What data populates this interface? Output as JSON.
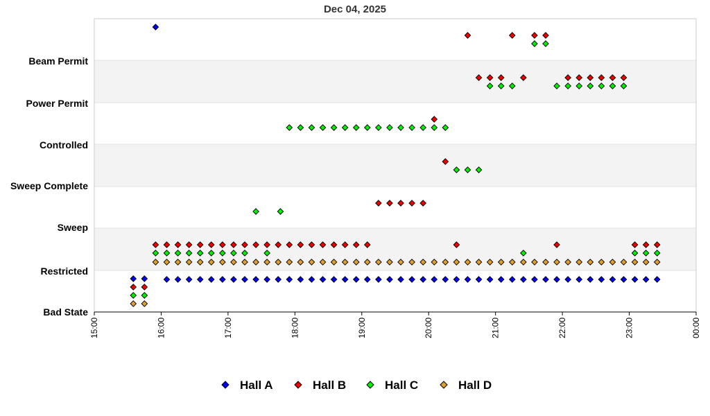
{
  "chart_data": {
    "type": "scatter",
    "title": "Dec 04, 2025",
    "y_categories": [
      "Bad State",
      "Restricted",
      "Sweep",
      "Sweep Complete",
      "Controlled",
      "Power Permit",
      "Beam Permit"
    ],
    "x_ticks": [
      "15:00",
      "16:00",
      "17:00",
      "18:00",
      "19:00",
      "20:00",
      "21:00",
      "22:00",
      "23:00",
      "00:00"
    ],
    "xlim": [
      "15:00",
      "00:00"
    ],
    "band_shading": true,
    "legend_position": "bottom",
    "series": [
      {
        "name": "Hall A",
        "color": "#0000ee",
        "points": [
          {
            "t": "15:35",
            "level": "Bad State"
          },
          {
            "t": "15:45",
            "level": "Bad State"
          },
          {
            "t": "15:55",
            "level": "Beam Permit"
          },
          {
            "t": "16:05",
            "level": "Restricted"
          },
          {
            "t": "16:15",
            "level": "Restricted"
          },
          {
            "t": "16:25",
            "level": "Restricted"
          },
          {
            "t": "16:35",
            "level": "Restricted"
          },
          {
            "t": "16:45",
            "level": "Restricted"
          },
          {
            "t": "16:55",
            "level": "Restricted"
          },
          {
            "t": "17:05",
            "level": "Restricted"
          },
          {
            "t": "17:15",
            "level": "Restricted"
          },
          {
            "t": "17:25",
            "level": "Restricted"
          },
          {
            "t": "17:35",
            "level": "Restricted"
          },
          {
            "t": "17:45",
            "level": "Restricted"
          },
          {
            "t": "17:55",
            "level": "Restricted"
          },
          {
            "t": "18:05",
            "level": "Restricted"
          },
          {
            "t": "18:15",
            "level": "Restricted"
          },
          {
            "t": "18:25",
            "level": "Restricted"
          },
          {
            "t": "18:35",
            "level": "Restricted"
          },
          {
            "t": "18:45",
            "level": "Restricted"
          },
          {
            "t": "18:55",
            "level": "Restricted"
          },
          {
            "t": "19:05",
            "level": "Restricted"
          },
          {
            "t": "19:15",
            "level": "Restricted"
          },
          {
            "t": "19:25",
            "level": "Restricted"
          },
          {
            "t": "19:35",
            "level": "Restricted"
          },
          {
            "t": "19:45",
            "level": "Restricted"
          },
          {
            "t": "19:55",
            "level": "Restricted"
          },
          {
            "t": "20:05",
            "level": "Restricted"
          },
          {
            "t": "20:15",
            "level": "Restricted"
          },
          {
            "t": "20:25",
            "level": "Restricted"
          },
          {
            "t": "20:35",
            "level": "Restricted"
          },
          {
            "t": "20:45",
            "level": "Restricted"
          },
          {
            "t": "20:55",
            "level": "Restricted"
          },
          {
            "t": "21:05",
            "level": "Restricted"
          },
          {
            "t": "21:15",
            "level": "Restricted"
          },
          {
            "t": "21:25",
            "level": "Restricted"
          },
          {
            "t": "21:35",
            "level": "Restricted"
          },
          {
            "t": "21:45",
            "level": "Restricted"
          },
          {
            "t": "21:55",
            "level": "Restricted"
          },
          {
            "t": "22:05",
            "level": "Restricted"
          },
          {
            "t": "22:15",
            "level": "Restricted"
          },
          {
            "t": "22:25",
            "level": "Restricted"
          },
          {
            "t": "22:35",
            "level": "Restricted"
          },
          {
            "t": "22:45",
            "level": "Restricted"
          },
          {
            "t": "22:55",
            "level": "Restricted"
          },
          {
            "t": "23:05",
            "level": "Restricted"
          },
          {
            "t": "23:15",
            "level": "Restricted"
          },
          {
            "t": "23:25",
            "level": "Restricted"
          }
        ]
      },
      {
        "name": "Hall B",
        "color": "#ee0000",
        "points": [
          {
            "t": "15:35",
            "level": "Bad State"
          },
          {
            "t": "15:45",
            "level": "Bad State"
          },
          {
            "t": "15:55",
            "level": "Restricted"
          },
          {
            "t": "16:05",
            "level": "Restricted"
          },
          {
            "t": "16:15",
            "level": "Restricted"
          },
          {
            "t": "16:25",
            "level": "Restricted"
          },
          {
            "t": "16:35",
            "level": "Restricted"
          },
          {
            "t": "16:45",
            "level": "Restricted"
          },
          {
            "t": "16:55",
            "level": "Restricted"
          },
          {
            "t": "17:05",
            "level": "Restricted"
          },
          {
            "t": "17:15",
            "level": "Restricted"
          },
          {
            "t": "17:25",
            "level": "Restricted"
          },
          {
            "t": "17:35",
            "level": "Restricted"
          },
          {
            "t": "17:45",
            "level": "Restricted"
          },
          {
            "t": "17:55",
            "level": "Restricted"
          },
          {
            "t": "18:05",
            "level": "Restricted"
          },
          {
            "t": "18:15",
            "level": "Restricted"
          },
          {
            "t": "18:25",
            "level": "Restricted"
          },
          {
            "t": "18:35",
            "level": "Restricted"
          },
          {
            "t": "18:45",
            "level": "Restricted"
          },
          {
            "t": "18:55",
            "level": "Restricted"
          },
          {
            "t": "19:05",
            "level": "Restricted"
          },
          {
            "t": "19:15",
            "level": "Sweep"
          },
          {
            "t": "19:25",
            "level": "Sweep"
          },
          {
            "t": "19:35",
            "level": "Sweep"
          },
          {
            "t": "19:45",
            "level": "Sweep"
          },
          {
            "t": "19:55",
            "level": "Sweep"
          },
          {
            "t": "20:05",
            "level": "Controlled"
          },
          {
            "t": "20:15",
            "level": "Sweep Complete"
          },
          {
            "t": "20:25",
            "level": "Restricted"
          },
          {
            "t": "20:35",
            "level": "Beam Permit"
          },
          {
            "t": "20:45",
            "level": "Power Permit"
          },
          {
            "t": "20:55",
            "level": "Power Permit"
          },
          {
            "t": "21:05",
            "level": "Power Permit"
          },
          {
            "t": "21:15",
            "level": "Beam Permit"
          },
          {
            "t": "21:25",
            "level": "Power Permit"
          },
          {
            "t": "21:35",
            "level": "Beam Permit"
          },
          {
            "t": "21:45",
            "level": "Beam Permit"
          },
          {
            "t": "21:55",
            "level": "Restricted"
          },
          {
            "t": "22:05",
            "level": "Power Permit"
          },
          {
            "t": "22:15",
            "level": "Power Permit"
          },
          {
            "t": "22:25",
            "level": "Power Permit"
          },
          {
            "t": "22:35",
            "level": "Power Permit"
          },
          {
            "t": "22:45",
            "level": "Power Permit"
          },
          {
            "t": "22:55",
            "level": "Power Permit"
          },
          {
            "t": "23:05",
            "level": "Restricted"
          },
          {
            "t": "23:15",
            "level": "Restricted"
          },
          {
            "t": "23:25",
            "level": "Restricted"
          }
        ]
      },
      {
        "name": "Hall C",
        "color": "#00ee00",
        "points": [
          {
            "t": "15:35",
            "level": "Bad State"
          },
          {
            "t": "15:45",
            "level": "Bad State"
          },
          {
            "t": "15:55",
            "level": "Restricted"
          },
          {
            "t": "16:05",
            "level": "Restricted"
          },
          {
            "t": "16:15",
            "level": "Restricted"
          },
          {
            "t": "16:25",
            "level": "Restricted"
          },
          {
            "t": "16:35",
            "level": "Restricted"
          },
          {
            "t": "16:45",
            "level": "Restricted"
          },
          {
            "t": "16:55",
            "level": "Restricted"
          },
          {
            "t": "17:05",
            "level": "Restricted"
          },
          {
            "t": "17:15",
            "level": "Restricted"
          },
          {
            "t": "17:25",
            "level": "Sweep"
          },
          {
            "t": "17:35",
            "level": "Restricted"
          },
          {
            "t": "17:47",
            "level": "Sweep"
          },
          {
            "t": "17:55",
            "level": "Controlled"
          },
          {
            "t": "18:05",
            "level": "Controlled"
          },
          {
            "t": "18:15",
            "level": "Controlled"
          },
          {
            "t": "18:25",
            "level": "Controlled"
          },
          {
            "t": "18:35",
            "level": "Controlled"
          },
          {
            "t": "18:45",
            "level": "Controlled"
          },
          {
            "t": "18:55",
            "level": "Controlled"
          },
          {
            "t": "19:05",
            "level": "Controlled"
          },
          {
            "t": "19:15",
            "level": "Controlled"
          },
          {
            "t": "19:25",
            "level": "Controlled"
          },
          {
            "t": "19:35",
            "level": "Controlled"
          },
          {
            "t": "19:45",
            "level": "Controlled"
          },
          {
            "t": "19:55",
            "level": "Controlled"
          },
          {
            "t": "20:05",
            "level": "Controlled"
          },
          {
            "t": "20:15",
            "level": "Controlled"
          },
          {
            "t": "20:25",
            "level": "Sweep Complete"
          },
          {
            "t": "20:35",
            "level": "Sweep Complete"
          },
          {
            "t": "20:45",
            "level": "Sweep Complete"
          },
          {
            "t": "20:55",
            "level": "Power Permit"
          },
          {
            "t": "21:05",
            "level": "Power Permit"
          },
          {
            "t": "21:15",
            "level": "Power Permit"
          },
          {
            "t": "21:25",
            "level": "Restricted"
          },
          {
            "t": "21:35",
            "level": "Beam Permit"
          },
          {
            "t": "21:45",
            "level": "Beam Permit"
          },
          {
            "t": "21:55",
            "level": "Power Permit"
          },
          {
            "t": "22:05",
            "level": "Power Permit"
          },
          {
            "t": "22:15",
            "level": "Power Permit"
          },
          {
            "t": "22:25",
            "level": "Power Permit"
          },
          {
            "t": "22:35",
            "level": "Power Permit"
          },
          {
            "t": "22:45",
            "level": "Power Permit"
          },
          {
            "t": "22:55",
            "level": "Power Permit"
          },
          {
            "t": "23:05",
            "level": "Restricted"
          },
          {
            "t": "23:15",
            "level": "Restricted"
          },
          {
            "t": "23:25",
            "level": "Restricted"
          }
        ]
      },
      {
        "name": "Hall D",
        "color": "#e0a030",
        "points": [
          {
            "t": "15:35",
            "level": "Bad State"
          },
          {
            "t": "15:45",
            "level": "Bad State"
          },
          {
            "t": "15:55",
            "level": "Restricted"
          },
          {
            "t": "16:05",
            "level": "Restricted"
          },
          {
            "t": "16:15",
            "level": "Restricted"
          },
          {
            "t": "16:25",
            "level": "Restricted"
          },
          {
            "t": "16:35",
            "level": "Restricted"
          },
          {
            "t": "16:45",
            "level": "Restricted"
          },
          {
            "t": "16:55",
            "level": "Restricted"
          },
          {
            "t": "17:05",
            "level": "Restricted"
          },
          {
            "t": "17:15",
            "level": "Restricted"
          },
          {
            "t": "17:25",
            "level": "Restricted"
          },
          {
            "t": "17:35",
            "level": "Restricted"
          },
          {
            "t": "17:45",
            "level": "Restricted"
          },
          {
            "t": "17:55",
            "level": "Restricted"
          },
          {
            "t": "18:05",
            "level": "Restricted"
          },
          {
            "t": "18:15",
            "level": "Restricted"
          },
          {
            "t": "18:25",
            "level": "Restricted"
          },
          {
            "t": "18:35",
            "level": "Restricted"
          },
          {
            "t": "18:45",
            "level": "Restricted"
          },
          {
            "t": "18:55",
            "level": "Restricted"
          },
          {
            "t": "19:05",
            "level": "Restricted"
          },
          {
            "t": "19:15",
            "level": "Restricted"
          },
          {
            "t": "19:25",
            "level": "Restricted"
          },
          {
            "t": "19:35",
            "level": "Restricted"
          },
          {
            "t": "19:45",
            "level": "Restricted"
          },
          {
            "t": "19:55",
            "level": "Restricted"
          },
          {
            "t": "20:05",
            "level": "Restricted"
          },
          {
            "t": "20:15",
            "level": "Restricted"
          },
          {
            "t": "20:25",
            "level": "Restricted"
          },
          {
            "t": "20:35",
            "level": "Restricted"
          },
          {
            "t": "20:45",
            "level": "Restricted"
          },
          {
            "t": "20:55",
            "level": "Restricted"
          },
          {
            "t": "21:05",
            "level": "Restricted"
          },
          {
            "t": "21:15",
            "level": "Restricted"
          },
          {
            "t": "21:25",
            "level": "Restricted"
          },
          {
            "t": "21:35",
            "level": "Restricted"
          },
          {
            "t": "21:45",
            "level": "Restricted"
          },
          {
            "t": "21:55",
            "level": "Restricted"
          },
          {
            "t": "22:05",
            "level": "Restricted"
          },
          {
            "t": "22:15",
            "level": "Restricted"
          },
          {
            "t": "22:25",
            "level": "Restricted"
          },
          {
            "t": "22:35",
            "level": "Restricted"
          },
          {
            "t": "22:45",
            "level": "Restricted"
          },
          {
            "t": "22:55",
            "level": "Restricted"
          },
          {
            "t": "23:05",
            "level": "Restricted"
          },
          {
            "t": "23:15",
            "level": "Restricted"
          },
          {
            "t": "23:25",
            "level": "Restricted"
          }
        ]
      }
    ]
  }
}
